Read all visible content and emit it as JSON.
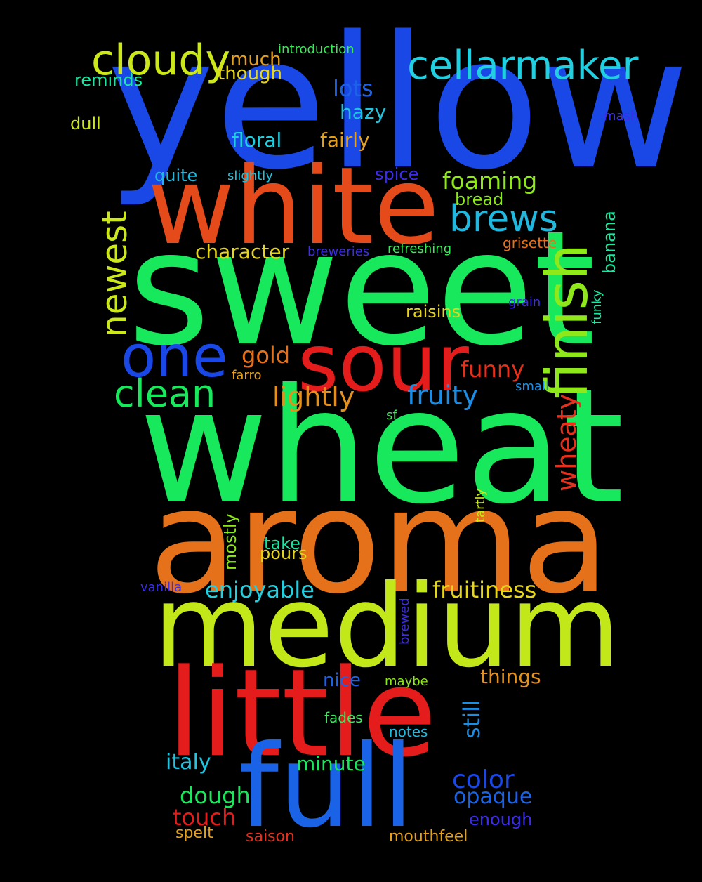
{
  "words": [
    {
      "text": "yellow",
      "color": "#1a48e6"
    },
    {
      "text": "sweet",
      "color": "#18e85c"
    },
    {
      "text": "wheat",
      "color": "#18e85c"
    },
    {
      "text": "aroma",
      "color": "#e5721b"
    },
    {
      "text": "medium",
      "color": "#c2e81a"
    },
    {
      "text": "little",
      "color": "#e51c1c"
    },
    {
      "text": "white",
      "color": "#e54a1b"
    },
    {
      "text": "full",
      "color": "#1a63e6"
    },
    {
      "text": "sour",
      "color": "#e51c1c"
    },
    {
      "text": "one",
      "color": "#1a48e6"
    },
    {
      "text": "finish",
      "color": "#8ee81a"
    },
    {
      "text": "cellarmaker",
      "color": "#21d0e0"
    },
    {
      "text": "cloudy",
      "color": "#cde81a"
    },
    {
      "text": "brews",
      "color": "#21b8e0"
    },
    {
      "text": "newest",
      "color": "#cde81a"
    },
    {
      "text": "clean",
      "color": "#18e85c"
    },
    {
      "text": "wheaty",
      "color": "#e5301b"
    },
    {
      "text": "lightly",
      "color": "#e5901b"
    },
    {
      "text": "fruity",
      "color": "#1a8ee6"
    },
    {
      "text": "foaming",
      "color": "#8ee81a"
    },
    {
      "text": "lots",
      "color": "#1a63e6"
    },
    {
      "text": "hazy",
      "color": "#21c4e0"
    },
    {
      "text": "fairly",
      "color": "#e5a01b"
    },
    {
      "text": "floral",
      "color": "#21d0e0"
    },
    {
      "text": "character",
      "color": "#e5d51b"
    },
    {
      "text": "funny",
      "color": "#e5301b"
    },
    {
      "text": "gold",
      "color": "#e5721b"
    },
    {
      "text": "enjoyable",
      "color": "#21d0e0"
    },
    {
      "text": "fruitiness",
      "color": "#e5d51b"
    },
    {
      "text": "color",
      "color": "#1a48e6"
    },
    {
      "text": "opaque",
      "color": "#1a63e6"
    },
    {
      "text": "dough",
      "color": "#18e85c"
    },
    {
      "text": "touch",
      "color": "#e51c1c"
    },
    {
      "text": "italy",
      "color": "#21c4e0"
    },
    {
      "text": "minute",
      "color": "#18e85c"
    },
    {
      "text": "things",
      "color": "#e5901b"
    },
    {
      "text": "nice",
      "color": "#1a63e6"
    },
    {
      "text": "still",
      "color": "#1a8ee6"
    },
    {
      "text": "much",
      "color": "#e5a01b"
    },
    {
      "text": "though",
      "color": "#e5d51b"
    },
    {
      "text": "reminds",
      "color": "#18e8a0"
    },
    {
      "text": "dull",
      "color": "#cde81a"
    },
    {
      "text": "quite",
      "color": "#21b8e0"
    },
    {
      "text": "spice",
      "color": "#3b2ee6"
    },
    {
      "text": "bread",
      "color": "#8ee81a"
    },
    {
      "text": "banana",
      "color": "#18e8a0"
    },
    {
      "text": "grisette",
      "color": "#e5721b"
    },
    {
      "text": "raisins",
      "color": "#e5d51b"
    },
    {
      "text": "mostly",
      "color": "#8ee81a"
    },
    {
      "text": "take",
      "color": "#18e8a0"
    },
    {
      "text": "pours",
      "color": "#e5d51b"
    },
    {
      "text": "enough",
      "color": "#3b2ee6"
    },
    {
      "text": "spelt",
      "color": "#e5a01b"
    },
    {
      "text": "saison",
      "color": "#e5301b"
    },
    {
      "text": "mouthfeel",
      "color": "#e5a01b"
    },
    {
      "text": "introduction",
      "color": "#3ee85c"
    },
    {
      "text": "mash",
      "color": "#3b2ee6"
    },
    {
      "text": "slightly",
      "color": "#21c4e0"
    },
    {
      "text": "breweries",
      "color": "#3b2ee6"
    },
    {
      "text": "refreshing",
      "color": "#3ee85c"
    },
    {
      "text": "grain",
      "color": "#3b2ee6"
    },
    {
      "text": "funky",
      "color": "#18e8a0"
    },
    {
      "text": "farro",
      "color": "#e5a01b"
    },
    {
      "text": "small",
      "color": "#1a8ee6"
    },
    {
      "text": "sf",
      "color": "#3ee85c"
    },
    {
      "text": "tartly",
      "color": "#cde81a"
    },
    {
      "text": "vanilla",
      "color": "#3b2ee6"
    },
    {
      "text": "brewed",
      "color": "#3b2ee6"
    },
    {
      "text": "maybe",
      "color": "#8ee81a"
    },
    {
      "text": "fades",
      "color": "#3ee85c"
    },
    {
      "text": "notes",
      "color": "#21b8e0"
    }
  ]
}
